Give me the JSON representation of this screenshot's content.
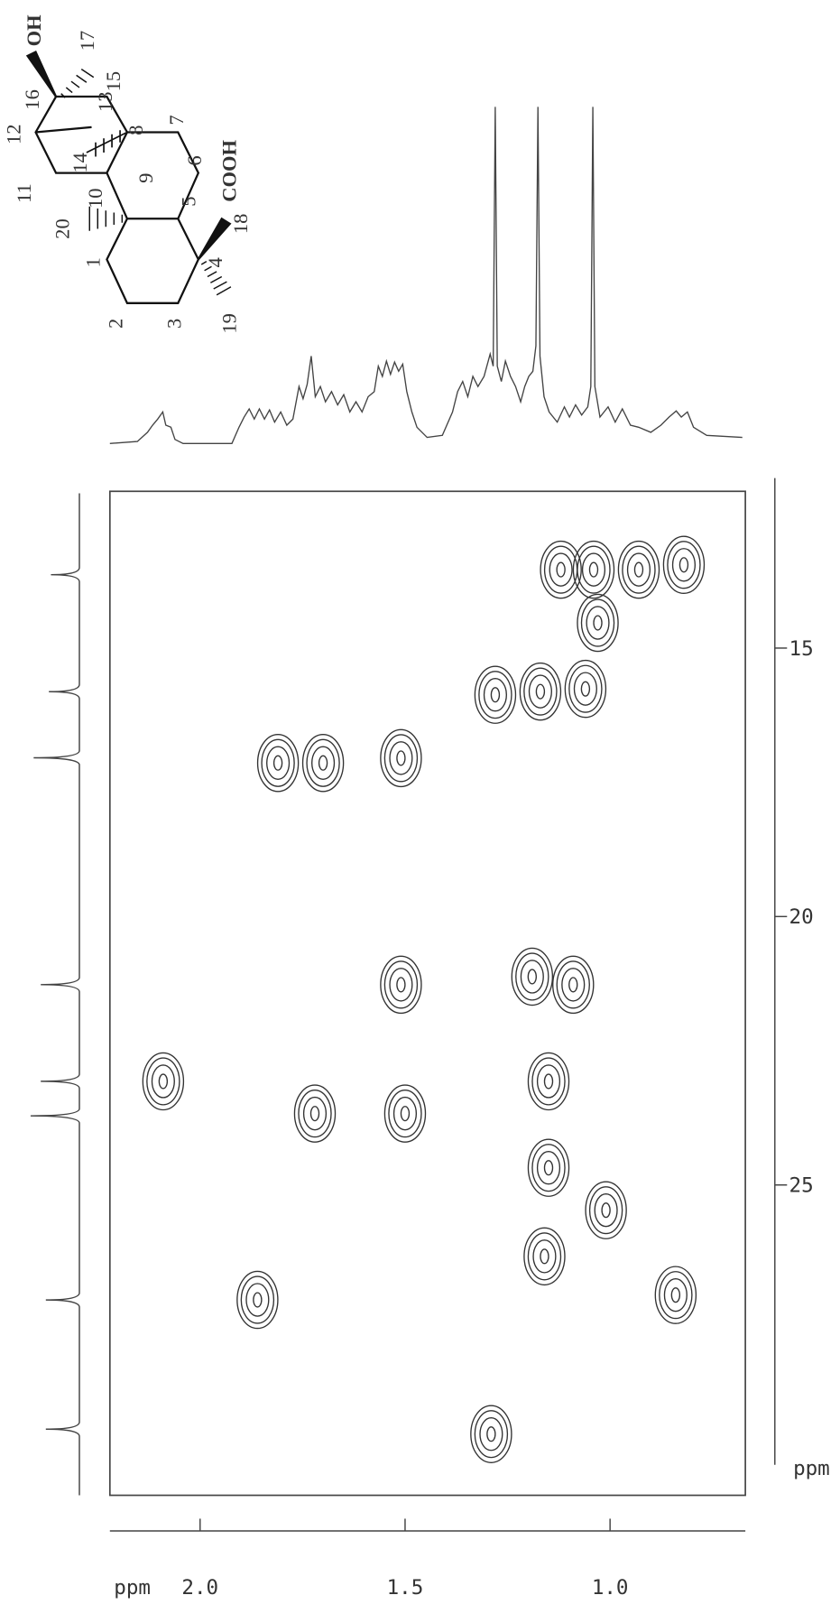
{
  "chart_data": {
    "type": "contour",
    "x_label": "ppm",
    "y_label": "ppm",
    "xlim": [
      2.22,
      0.67
    ],
    "ylim": [
      12.08,
      30.78
    ],
    "xticks": [
      {
        "value": 2,
        "label": "2.0"
      },
      1.5,
      {
        "value": 1,
        "label": "1.0"
      }
    ],
    "yticks": [
      15,
      20,
      25
    ],
    "color": "#333333",
    "peaks": {
      "x": [
        1.04,
        1.12,
        0.93,
        0.82,
        1.03,
        1.17,
        1.06,
        1.28,
        1.7,
        1.81,
        1.51,
        1.51,
        1.09,
        1.19,
        2.09,
        1.15,
        1.72,
        1.5,
        1.15,
        1.01,
        1.16,
        1.86,
        0.84,
        1.29
      ],
      "y": [
        13.54,
        13.54,
        13.54,
        13.45,
        14.53,
        15.81,
        15.76,
        15.87,
        17.14,
        17.14,
        17.05,
        21.27,
        21.27,
        21.12,
        23.07,
        23.07,
        23.67,
        23.67,
        24.68,
        25.47,
        26.33,
        27.14,
        27.05,
        29.64
      ]
    }
  },
  "structure": {
    "atoms": [
      "1",
      "2",
      "3",
      "4",
      "5",
      "6",
      "7",
      "8",
      "9",
      "10",
      "11",
      "12",
      "13",
      "14",
      "15",
      "16",
      "17",
      "18",
      "19",
      "20"
    ],
    "hydroxyl": "OH",
    "carboxyl": "COOH"
  }
}
